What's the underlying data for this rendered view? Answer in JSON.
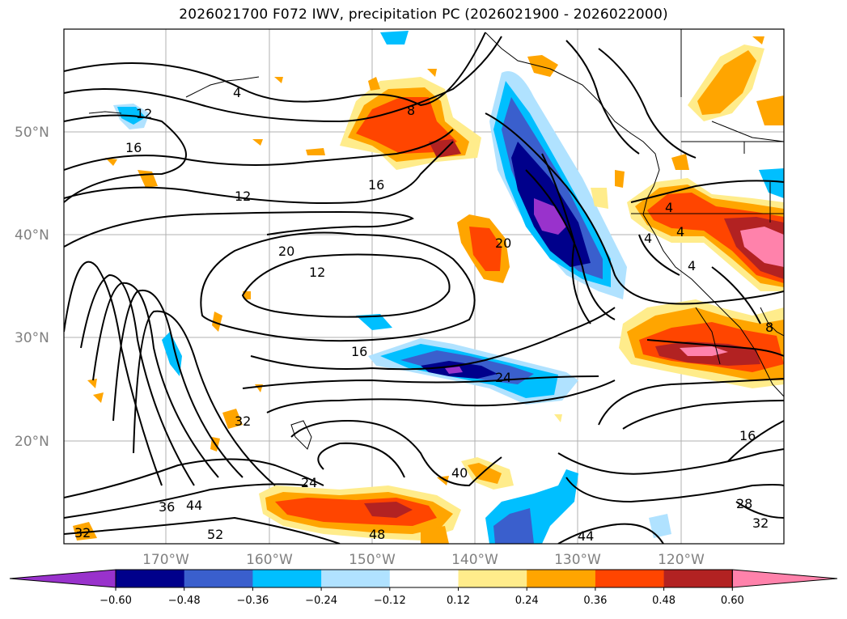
{
  "title": "2026021700 F072 IWV, precipitation PC (2026021900 - 2026022000)",
  "latitude_labels": [
    "50°N",
    "40°N",
    "30°N",
    "20°N"
  ],
  "longitude_labels": [
    "170°W",
    "160°W",
    "150°W",
    "140°W",
    "130°W",
    "120°W"
  ],
  "colorbar": {
    "ticks": [
      "−0.60",
      "−0.48",
      "−0.36",
      "−0.24",
      "−0.12",
      "0.12",
      "0.24",
      "0.36",
      "0.48",
      "0.60"
    ],
    "colors": [
      "#9932cc",
      "#00008b",
      "#3a5fcd",
      "#00bfff",
      "#b0e2ff",
      "#ffffff",
      "#ffec8b",
      "#ffa500",
      "#ff4500",
      "#b22222",
      "#ff82ab"
    ]
  },
  "contour_labels": [
    "4",
    "8",
    "12",
    "16",
    "12",
    "16",
    "20",
    "12",
    "20",
    "16",
    "24",
    "32",
    "24",
    "36",
    "44",
    "52",
    "32",
    "48",
    "40",
    "44",
    "16",
    "28",
    "32",
    "4",
    "4",
    "4",
    "4",
    "8"
  ]
}
